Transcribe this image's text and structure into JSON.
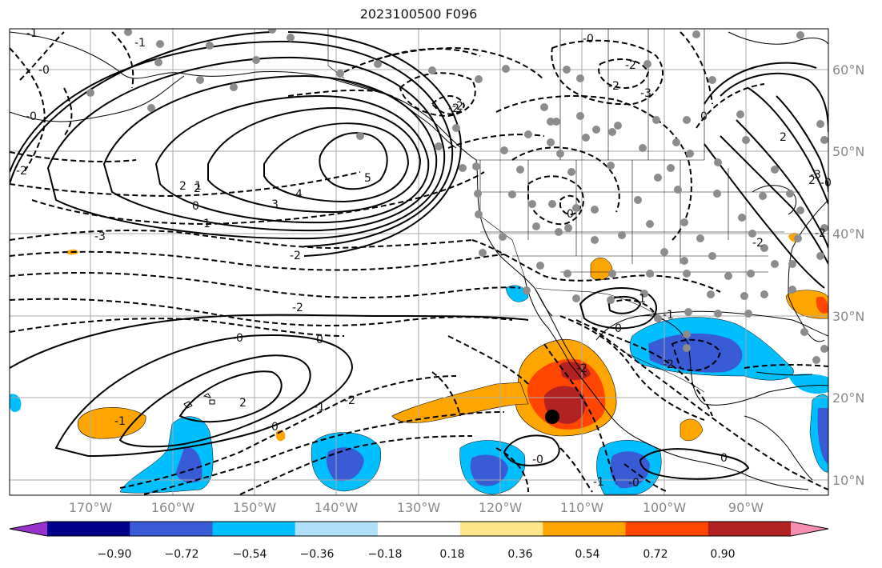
{
  "title": "2023100500 F096",
  "map": {
    "longitude_ticks": [
      "170°W",
      "160°W",
      "150°W",
      "140°W",
      "130°W",
      "120°W",
      "110°W",
      "100°W",
      "90°W"
    ],
    "latitude_ticks": [
      "60°N",
      "50°N",
      "40°N",
      "30°N",
      "20°N",
      "10°N"
    ],
    "contour_labels": [
      "-1",
      "-0",
      "-0",
      "-2",
      "-1",
      "-3",
      "-2",
      "-2",
      "-0",
      "0",
      "0",
      "-0",
      "-1",
      "-2",
      "-0",
      "2",
      "2",
      "-1",
      "-1",
      "-2",
      "1",
      "2",
      "3",
      "4",
      "5",
      "-3",
      "-2",
      "2",
      "-2",
      "-2",
      "-0",
      "0",
      "1",
      "0",
      "-2",
      "-2",
      "0",
      "-0",
      "0",
      "-1",
      "-0",
      "2",
      "-3",
      "-2",
      "-2",
      "-1"
    ]
  },
  "colorbar": {
    "ticks": [
      "−0.90",
      "−0.72",
      "−0.54",
      "−0.36",
      "−0.18",
      "0.18",
      "0.36",
      "0.54",
      "0.72",
      "0.90"
    ],
    "colors": [
      "#9932cc",
      "#00008b",
      "#3a5bd6",
      "#00bfff",
      "#b0e0f8",
      "#ffffff",
      "#fde68a",
      "#ffa500",
      "#ff4500",
      "#b22222",
      "#f48fb1"
    ]
  }
}
